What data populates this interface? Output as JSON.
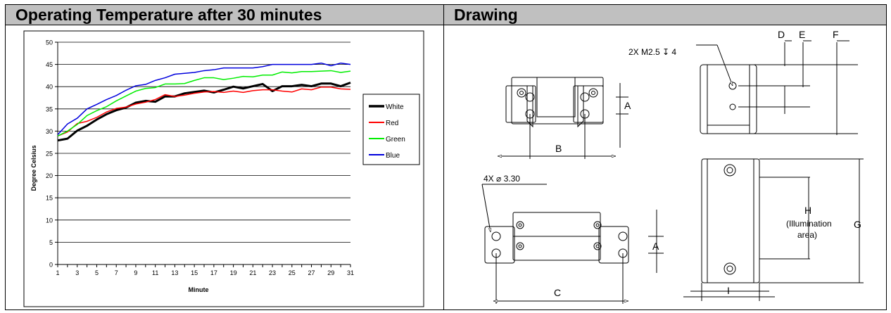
{
  "header": {
    "left_title": "Operating Temperature after 30 minutes",
    "right_title": "Drawing"
  },
  "chart_data": {
    "type": "line",
    "xlabel": "Minute",
    "ylabel": "Degree Celsius",
    "ylim": [
      0,
      50
    ],
    "yticks": [
      0,
      5,
      10,
      15,
      20,
      25,
      30,
      35,
      40,
      45,
      50
    ],
    "xticks": [
      1,
      3,
      5,
      7,
      9,
      11,
      13,
      15,
      17,
      19,
      21,
      23,
      25,
      27,
      29,
      31
    ],
    "grid": "horizontal",
    "legend": "right",
    "x": [
      1,
      2,
      3,
      4,
      5,
      6,
      7,
      8,
      9,
      10,
      11,
      12,
      13,
      14,
      15,
      16,
      17,
      18,
      19,
      20,
      21,
      22,
      23,
      24,
      25,
      26,
      27,
      28,
      29,
      30,
      31
    ],
    "series": [
      {
        "name": "White",
        "color": "#000000",
        "width": 3,
        "values": [
          27.9,
          28.3,
          30.1,
          31.2,
          32.6,
          33.8,
          34.7,
          35.3,
          36.4,
          36.8,
          36.6,
          37.8,
          37.8,
          38.5,
          38.8,
          39.1,
          38.7,
          39.3,
          40.0,
          39.6,
          40.1,
          40.6,
          39.0,
          40.1,
          40.1,
          40.4,
          40.1,
          40.7,
          40.7,
          40.1,
          40.9
        ]
      },
      {
        "name": "Red",
        "color": "#ff0000",
        "width": 1.5,
        "values": [
          28.9,
          29.8,
          31.7,
          32.2,
          33.1,
          34.3,
          35.1,
          35.4,
          36.1,
          36.5,
          37.1,
          38.2,
          37.8,
          38.1,
          38.5,
          38.8,
          38.9,
          38.7,
          39.0,
          38.7,
          39.1,
          39.3,
          39.3,
          39.0,
          38.8,
          39.5,
          39.3,
          39.9,
          39.9,
          39.5,
          39.4
        ]
      },
      {
        "name": "Green",
        "color": "#00ee00",
        "width": 1.5,
        "values": [
          28.9,
          30.0,
          31.5,
          33.5,
          34.6,
          35.5,
          36.8,
          37.9,
          39.0,
          39.6,
          39.8,
          40.6,
          40.6,
          40.7,
          41.4,
          42.0,
          42.0,
          41.6,
          41.9,
          42.3,
          42.2,
          42.6,
          42.6,
          43.3,
          43.1,
          43.4,
          43.4,
          43.5,
          43.6,
          43.2,
          43.5
        ]
      },
      {
        "name": "Blue",
        "color": "#0000dd",
        "width": 1.5,
        "values": [
          29.2,
          31.6,
          32.9,
          35.0,
          36.0,
          37.1,
          38.0,
          39.2,
          40.2,
          40.5,
          41.4,
          42.0,
          42.8,
          43.0,
          43.2,
          43.6,
          43.8,
          44.2,
          44.2,
          44.2,
          44.2,
          44.5,
          45.0,
          45.0,
          45.0,
          45.0,
          45.0,
          45.3,
          44.7,
          45.3,
          45.0
        ]
      }
    ]
  },
  "drawing": {
    "labels": {
      "A": "A",
      "A2": "A",
      "B": "B",
      "C": "C",
      "D": "D",
      "E": "E",
      "F": "F",
      "G": "G",
      "H": "H",
      "I": "I",
      "h_note_1": "(Illumination",
      "h_note_2": "area)",
      "thread_note": "2X M2.5 ↧ 4",
      "hole_note": "4X ⌀ 3.30"
    }
  }
}
